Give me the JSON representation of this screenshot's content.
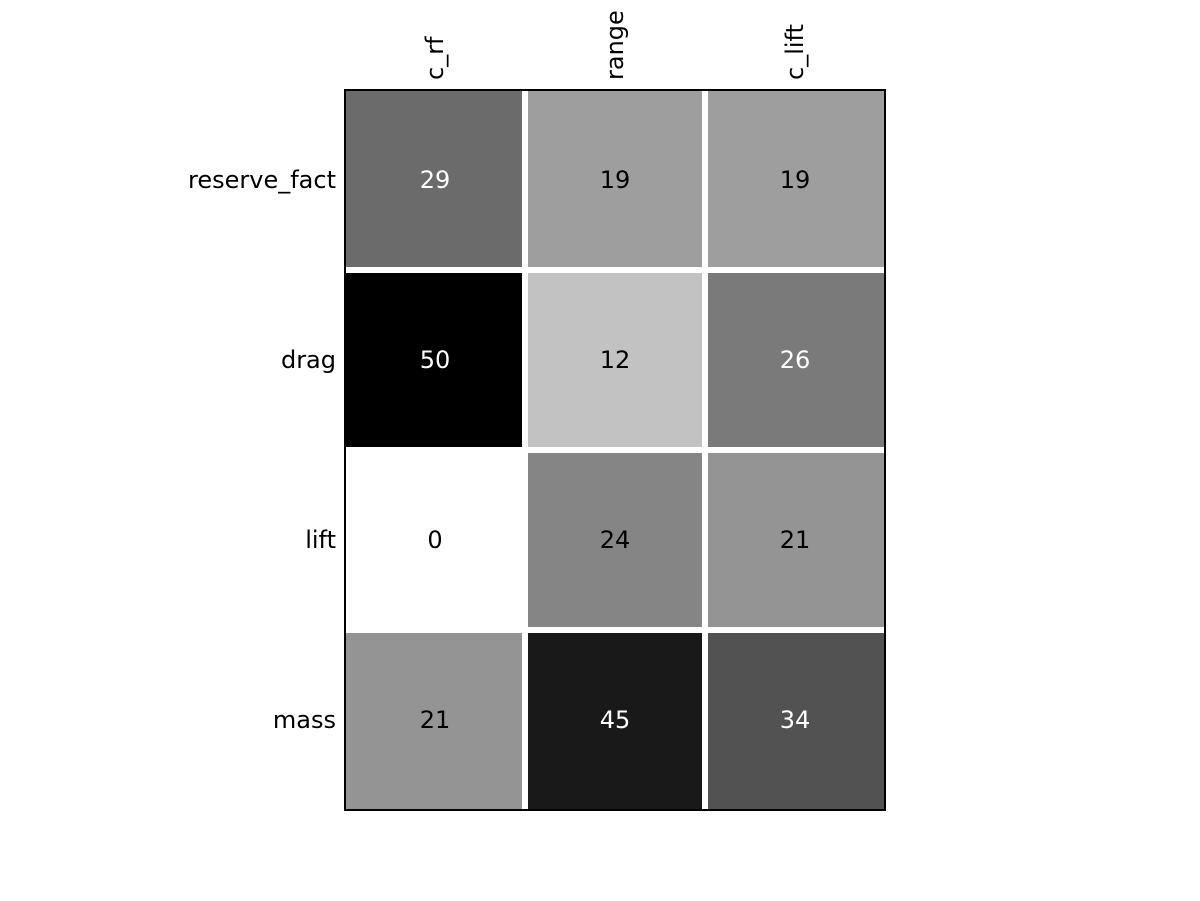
{
  "chart_data": {
    "type": "heatmap",
    "title": "",
    "colormap": "gray_r",
    "value_range": [
      0,
      50
    ],
    "columns": [
      "c_rf",
      "range",
      "c_lift"
    ],
    "rows": [
      "reserve_fact",
      "drag",
      "lift",
      "mass"
    ],
    "values": [
      [
        29,
        19,
        19
      ],
      [
        50,
        12,
        26
      ],
      [
        0,
        24,
        21
      ],
      [
        21,
        45,
        34
      ]
    ],
    "grid": false,
    "legend": "none"
  }
}
